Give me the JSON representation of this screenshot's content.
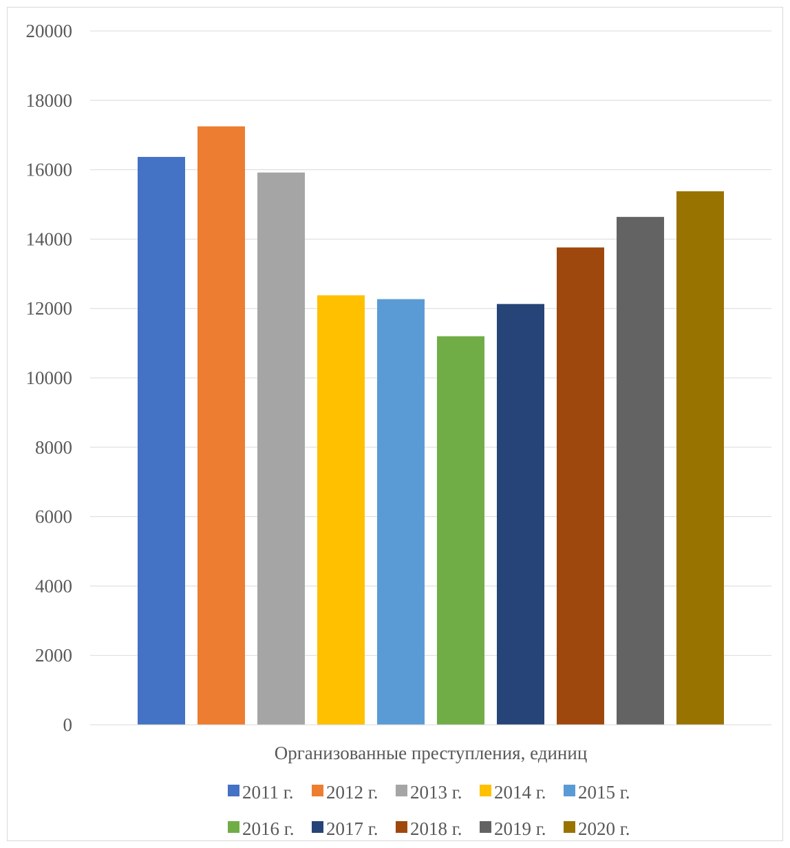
{
  "chart_data": {
    "type": "bar",
    "title": "",
    "xlabel": "",
    "ylabel": "",
    "categories": [
      "Организованные преступления, единиц"
    ],
    "ylim": [
      0,
      20000
    ],
    "yticks": [
      0,
      2000,
      4000,
      6000,
      8000,
      10000,
      12000,
      14000,
      16000,
      18000,
      20000
    ],
    "grid": true,
    "legend_position": "bottom",
    "series": [
      {
        "name": "2011 г.",
        "values": [
          16370
        ],
        "color": "#4472c4"
      },
      {
        "name": "2012 г.",
        "values": [
          17250
        ],
        "color": "#ed7d31"
      },
      {
        "name": "2013 г.",
        "values": [
          15920
        ],
        "color": "#a5a5a5"
      },
      {
        "name": "2014 г.",
        "values": [
          12380
        ],
        "color": "#ffc000"
      },
      {
        "name": "2015 г.",
        "values": [
          12270
        ],
        "color": "#5b9bd5"
      },
      {
        "name": "2016 г.",
        "values": [
          11200
        ],
        "color": "#70ad47"
      },
      {
        "name": "2017 г.",
        "values": [
          12130
        ],
        "color": "#264478"
      },
      {
        "name": "2018 г.",
        "values": [
          13760
        ],
        "color": "#9e480e"
      },
      {
        "name": "2019 г.",
        "values": [
          14640
        ],
        "color": "#636363"
      },
      {
        "name": "2020 г.",
        "values": [
          15380
        ],
        "color": "#997300"
      }
    ],
    "colors": {
      "gridline": "#d9d9d9",
      "axis_text": "#595959",
      "frame": "#d9d9d9"
    }
  }
}
